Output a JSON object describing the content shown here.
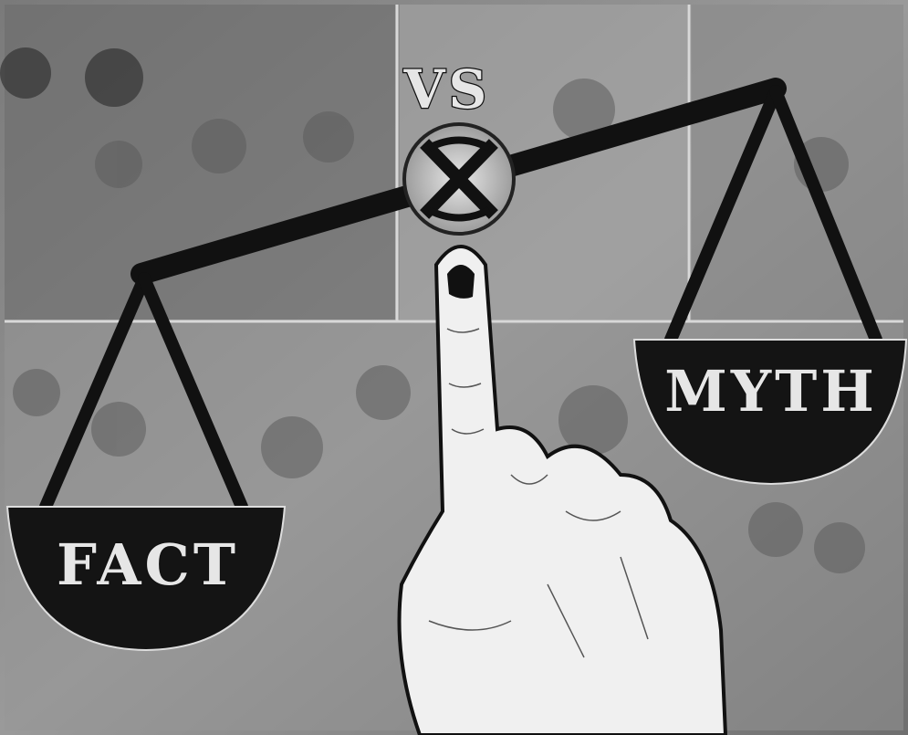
{
  "vs": "VS",
  "left_pan": {
    "label": "FACT"
  },
  "right_pan": {
    "label": "MYTH"
  }
}
